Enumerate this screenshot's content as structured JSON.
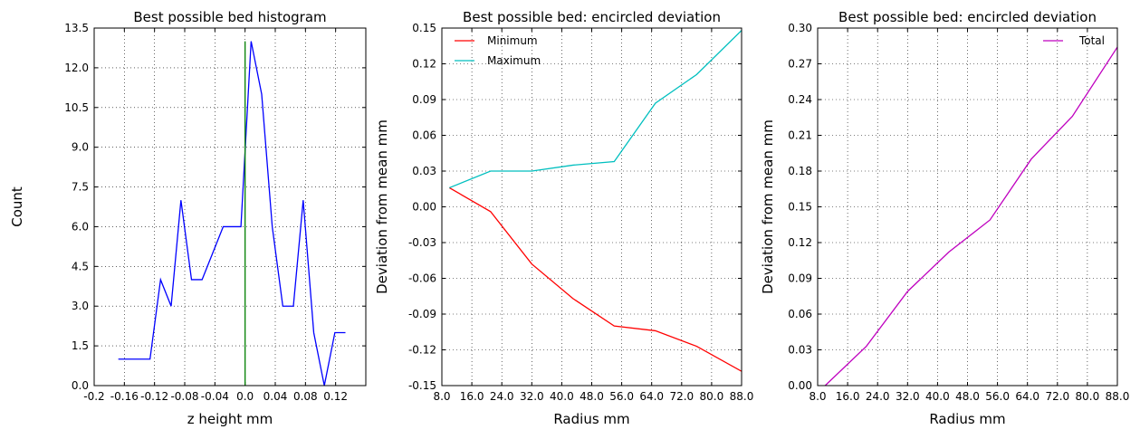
{
  "chart_data": [
    {
      "type": "line",
      "title": "Best possible bed histogram",
      "xlabel": "z height mm",
      "ylabel": "Count",
      "xlim": [
        -0.2,
        0.16
      ],
      "ylim": [
        0,
        13.5
      ],
      "x_ticks": [
        "-0.2",
        "-0.16",
        "-0.12",
        "-0.08",
        "-0.04",
        "0.0",
        "0.04",
        "0.08",
        "0.12"
      ],
      "y_ticks": [
        "0.0",
        "1.5",
        "3.0",
        "4.5",
        "6.0",
        "7.5",
        "9.0",
        "10.5",
        "12.0",
        "13.5"
      ],
      "grid": true,
      "series": [
        {
          "color": "#0000ff",
          "x": [
            -0.168,
            -0.154,
            -0.14,
            -0.126,
            -0.112,
            -0.098,
            -0.085,
            -0.071,
            -0.057,
            -0.043,
            -0.029,
            -0.0055,
            0.008,
            0.022,
            0.036,
            0.05,
            0.064,
            0.077,
            0.091,
            0.105,
            0.119,
            0.133
          ],
          "y": [
            1,
            1,
            1,
            1,
            4,
            3,
            7,
            4,
            4,
            5,
            6,
            6,
            13,
            11,
            6,
            3,
            3,
            7,
            2,
            0,
            2,
            2
          ]
        },
        {
          "color": "#008000",
          "x": [
            0,
            0
          ],
          "y": [
            0,
            13
          ]
        }
      ]
    },
    {
      "type": "line",
      "title": "Best possible bed: encircled deviation",
      "xlabel": "Radius mm",
      "ylabel": "Deviation from mean mm",
      "xlim": [
        8,
        88
      ],
      "ylim": [
        -0.15,
        0.15
      ],
      "x_ticks": [
        "8.0",
        "16.0",
        "24.0",
        "32.0",
        "40.0",
        "48.0",
        "56.0",
        "64.0",
        "72.0",
        "80.0",
        "88.0"
      ],
      "y_ticks": [
        "-0.15",
        "-0.12",
        "-0.09",
        "-0.06",
        "-0.03",
        "0.00",
        "0.03",
        "0.06",
        "0.09",
        "0.12",
        "0.15"
      ],
      "grid": true,
      "legend_position": "top-left",
      "series": [
        {
          "name": "Minimum",
          "color": "#ff0000",
          "x": [
            10,
            21,
            32,
            43,
            54,
            65,
            76,
            88
          ],
          "y": [
            0.016,
            -0.004,
            -0.048,
            -0.077,
            -0.1,
            -0.104,
            -0.117,
            -0.138
          ]
        },
        {
          "name": "Maximum",
          "color": "#00bfbf",
          "x": [
            10,
            21,
            32,
            43,
            54,
            65,
            76,
            88
          ],
          "y": [
            0.016,
            0.03,
            0.03,
            0.035,
            0.038,
            0.087,
            0.111,
            0.148
          ]
        }
      ]
    },
    {
      "type": "line",
      "title": "Best possible bed: encircled deviation",
      "xlabel": "Radius mm",
      "ylabel": "Deviation from mean mm",
      "xlim": [
        8,
        88
      ],
      "ylim": [
        0,
        0.3
      ],
      "x_ticks": [
        "8.0",
        "16.0",
        "24.0",
        "32.0",
        "40.0",
        "48.0",
        "56.0",
        "64.0",
        "72.0",
        "80.0",
        "88.0"
      ],
      "y_ticks": [
        "0.00",
        "0.03",
        "0.06",
        "0.09",
        "0.12",
        "0.15",
        "0.18",
        "0.21",
        "0.24",
        "0.27",
        "0.30"
      ],
      "grid": true,
      "legend_position": "top-right",
      "series": [
        {
          "name": "Total",
          "color": "#bf00bf",
          "x": [
            10,
            21,
            32,
            43,
            54,
            65,
            76,
            88
          ],
          "y": [
            0.0,
            0.033,
            0.079,
            0.112,
            0.139,
            0.19,
            0.226,
            0.284
          ]
        }
      ]
    }
  ]
}
